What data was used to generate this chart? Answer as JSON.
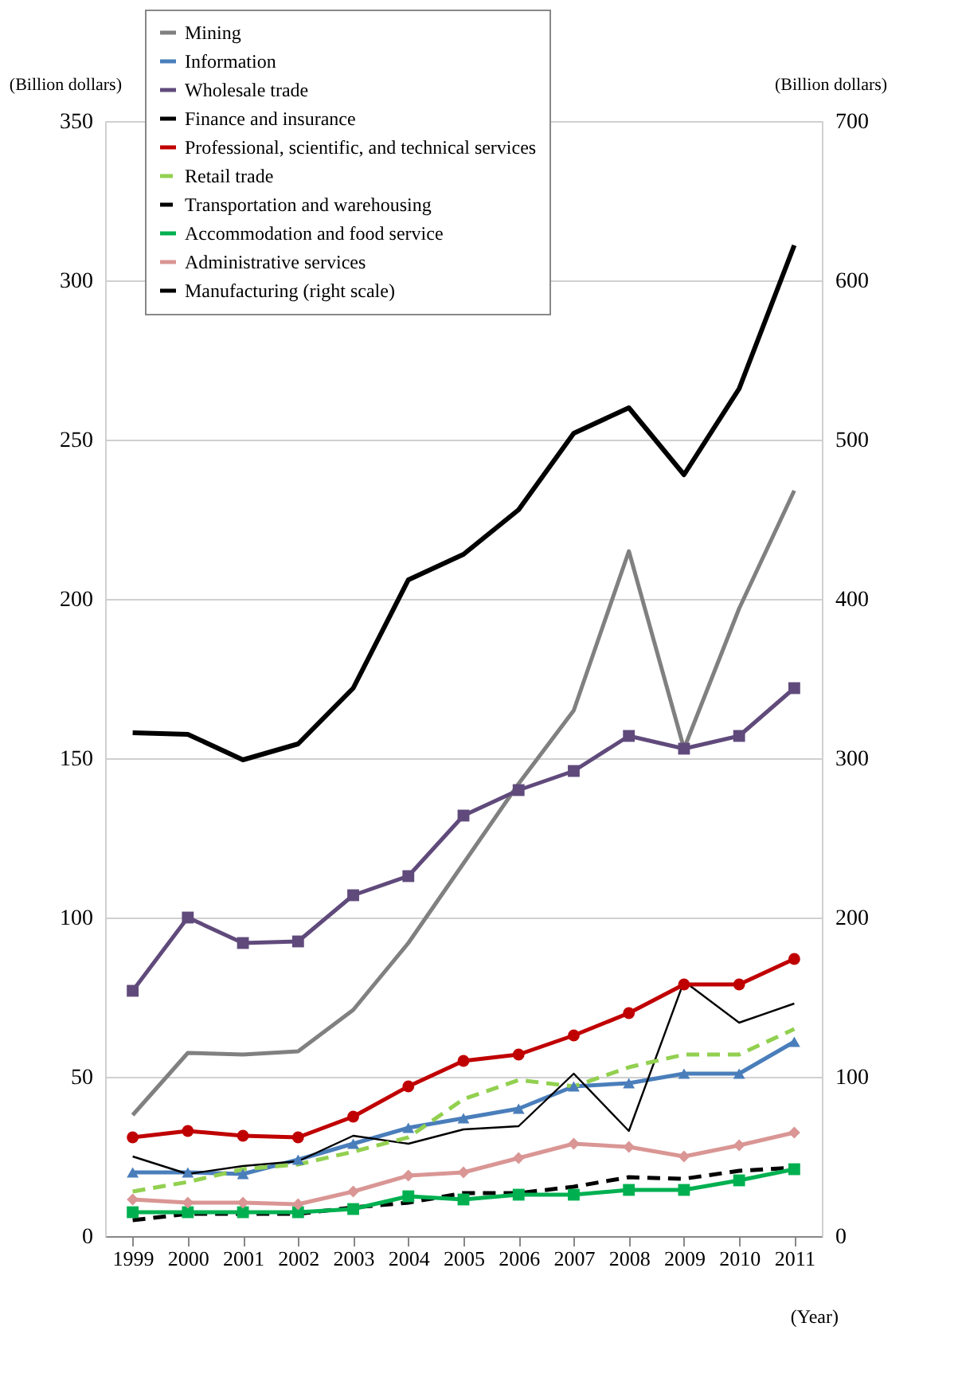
{
  "chart_data": {
    "type": "line",
    "ylabel": "(Billion dollars)",
    "y2label": "(Billion dollars)",
    "xlabel": "(Year)",
    "categories": [
      "1999",
      "2000",
      "2001",
      "2002",
      "2003",
      "2004",
      "2005",
      "2006",
      "2007",
      "2008",
      "2009",
      "2010",
      "2011"
    ],
    "ylim": [
      0,
      350
    ],
    "yticks": [
      0,
      50,
      100,
      150,
      200,
      250,
      300,
      350
    ],
    "y2lim": [
      0,
      700
    ],
    "y2ticks": [
      0,
      100,
      200,
      300,
      400,
      500,
      600,
      700
    ],
    "grid": "y",
    "legend": "top left",
    "series": [
      {
        "name": "Mining",
        "color": "#808080",
        "marker": "none",
        "line_style": "solid",
        "values": [
          38,
          57.5,
          57,
          58,
          71,
          92,
          117,
          142,
          165,
          215,
          153,
          197,
          234
        ]
      },
      {
        "name": "Information",
        "color": "#4a7ebb",
        "marker": "triangle",
        "line_style": "solid",
        "values": [
          20,
          20,
          19.5,
          24,
          29,
          34,
          37,
          40,
          47,
          48,
          51,
          51,
          61
        ]
      },
      {
        "name": "Wholesale trade",
        "color": "#604a7b",
        "marker": "square",
        "line_style": "solid",
        "values": [
          77,
          100,
          92,
          92.5,
          107,
          113,
          132,
          140,
          146,
          157,
          153,
          157,
          172
        ]
      },
      {
        "name": "Finance and insurance",
        "color": "#000000",
        "marker": "none",
        "line_style": "solid",
        "values": [
          25,
          19.5,
          22,
          23.5,
          31.5,
          29,
          33.5,
          34.5,
          51,
          33,
          80,
          67,
          73
        ]
      },
      {
        "name": "Professional, scientific, and technical services",
        "color": "#c00000",
        "marker": "circle",
        "line_style": "solid",
        "values": [
          31,
          33,
          31.5,
          31,
          37.5,
          47,
          55,
          57,
          63,
          70,
          79,
          79,
          87
        ]
      },
      {
        "name": "Retail trade",
        "color": "#92d050",
        "marker": "none",
        "line_style": "dashed",
        "values": [
          14,
          17,
          21,
          22.5,
          26.5,
          31,
          43,
          49,
          47,
          53,
          57,
          57,
          65
        ]
      },
      {
        "name": "Transportation and warehousing",
        "color": "#000000",
        "marker": "none",
        "line_style": "dashed",
        "values": [
          5,
          7,
          7,
          7,
          9,
          10.5,
          13.5,
          13.5,
          15.5,
          18.5,
          18,
          20.5,
          21.5
        ]
      },
      {
        "name": "Accommodation and food service",
        "color": "#00b050",
        "marker": "square",
        "line_style": "solid",
        "values": [
          7.5,
          7.5,
          7.5,
          7.5,
          8.5,
          12.5,
          11.5,
          13,
          13,
          14.5,
          14.5,
          17.5,
          21
        ]
      },
      {
        "name": "Administrative services",
        "color": "#d99694",
        "marker": "diamond",
        "line_style": "solid",
        "values": [
          11.5,
          10.5,
          10.5,
          10,
          14,
          19,
          20,
          24.5,
          29,
          28,
          25,
          28.5,
          32.5
        ]
      },
      {
        "name": "Manufacturing (right scale)",
        "color": "#000000",
        "marker": "none",
        "line_style": "solid",
        "axis": "y2",
        "values": [
          316,
          315,
          299,
          309,
          344,
          412,
          428,
          456,
          504,
          520,
          478,
          532,
          622
        ]
      }
    ]
  }
}
